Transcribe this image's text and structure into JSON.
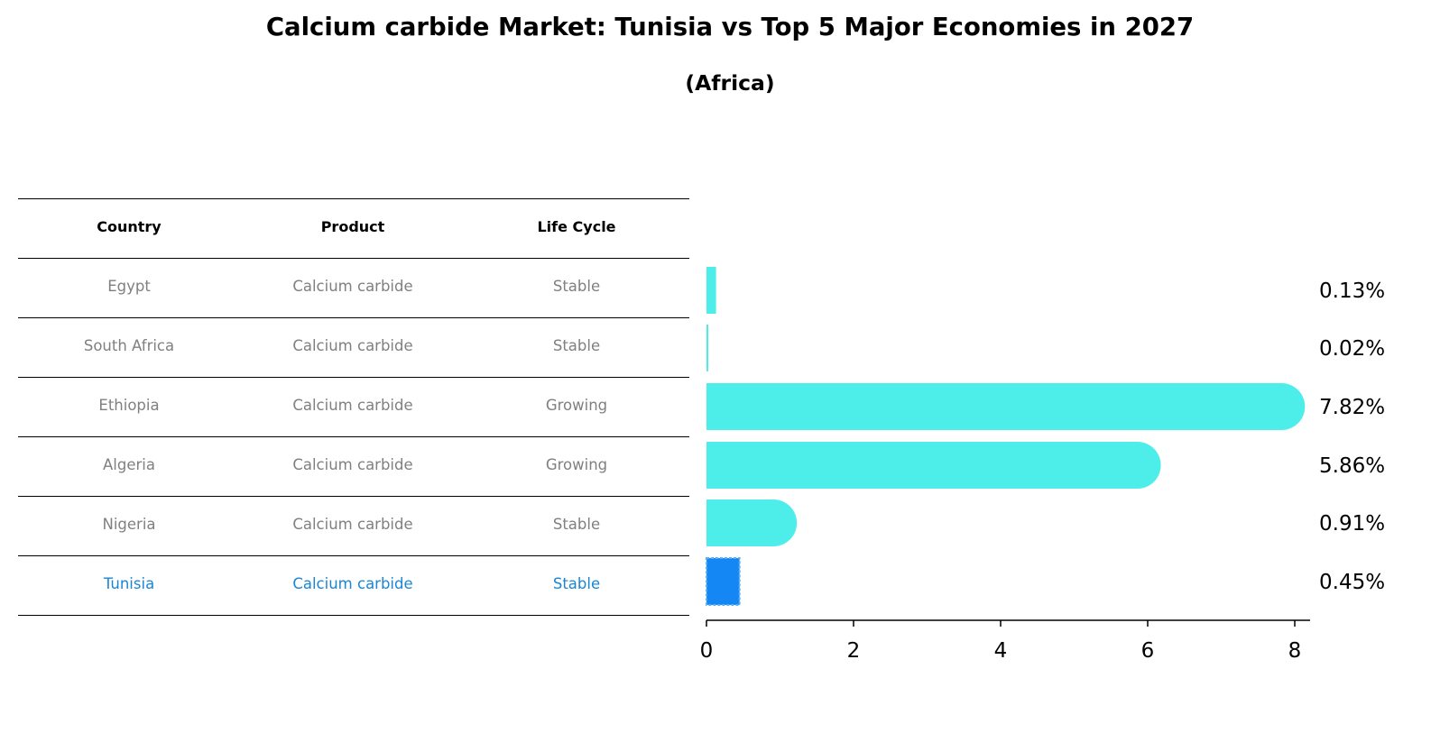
{
  "title": "Calcium carbide Market: Tunisia vs Top 5 Major Economies in 2027",
  "subtitle": "(Africa)",
  "table": {
    "headers": [
      "Country",
      "Product",
      "Life Cycle"
    ],
    "rows": [
      {
        "country": "Egypt",
        "product": "Calcium carbide",
        "life_cycle": "Stable",
        "highlight": false
      },
      {
        "country": "South Africa",
        "product": "Calcium carbide",
        "life_cycle": "Stable",
        "highlight": false
      },
      {
        "country": "Ethiopia",
        "product": "Calcium carbide",
        "life_cycle": "Growing",
        "highlight": false
      },
      {
        "country": "Algeria",
        "product": "Calcium carbide",
        "life_cycle": "Growing",
        "highlight": false
      },
      {
        "country": "Nigeria",
        "product": "Calcium carbide",
        "life_cycle": "Stable",
        "highlight": false
      },
      {
        "country": "Tunisia",
        "product": "Calcium carbide",
        "life_cycle": "Stable",
        "highlight": true
      }
    ]
  },
  "colors": {
    "bar": "#4deeea",
    "highlight_bar": "#1587f5",
    "highlight_text": "#1a86d6",
    "muted_text": "#808080"
  },
  "chart_data": {
    "type": "bar",
    "orientation": "horizontal",
    "categories": [
      "Egypt",
      "South Africa",
      "Ethiopia",
      "Algeria",
      "Nigeria",
      "Tunisia"
    ],
    "values": [
      0.13,
      0.02,
      7.82,
      5.86,
      0.91,
      0.45
    ],
    "value_labels": [
      "0.13%",
      "0.02%",
      "7.82%",
      "5.86%",
      "0.91%",
      "0.45%"
    ],
    "highlight_category": "Tunisia",
    "xlim": [
      0,
      8.2
    ],
    "x_ticks": [
      0,
      2,
      4,
      6,
      8
    ],
    "xlabel": "",
    "ylabel": "",
    "grid": false,
    "legend": "none"
  }
}
